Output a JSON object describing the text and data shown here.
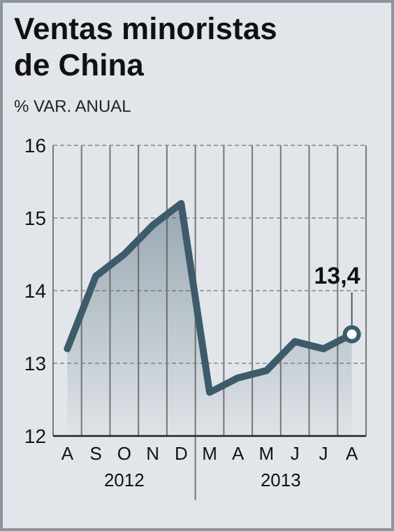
{
  "chart_data": {
    "type": "area",
    "title": "Ventas minoristas de China",
    "subtitle": "% VAR. ANUAL",
    "categories": [
      "A",
      "S",
      "O",
      "N",
      "D",
      "M",
      "A",
      "M",
      "J",
      "J",
      "A"
    ],
    "series": [
      {
        "color": "#3e5b6b",
        "values": [
          13.2,
          14.2,
          14.5,
          14.9,
          15.2,
          12.6,
          12.8,
          12.9,
          13.3,
          13.2,
          13.4
        ],
        "value_labels": [
          null,
          null,
          null,
          null,
          null,
          null,
          null,
          null,
          null,
          null,
          "13,4"
        ]
      }
    ],
    "annotations": [
      "2012",
      "2013"
    ],
    "ylim": [
      12,
      16
    ],
    "yticks": [
      12,
      13,
      14,
      15,
      16
    ],
    "grid": true
  }
}
